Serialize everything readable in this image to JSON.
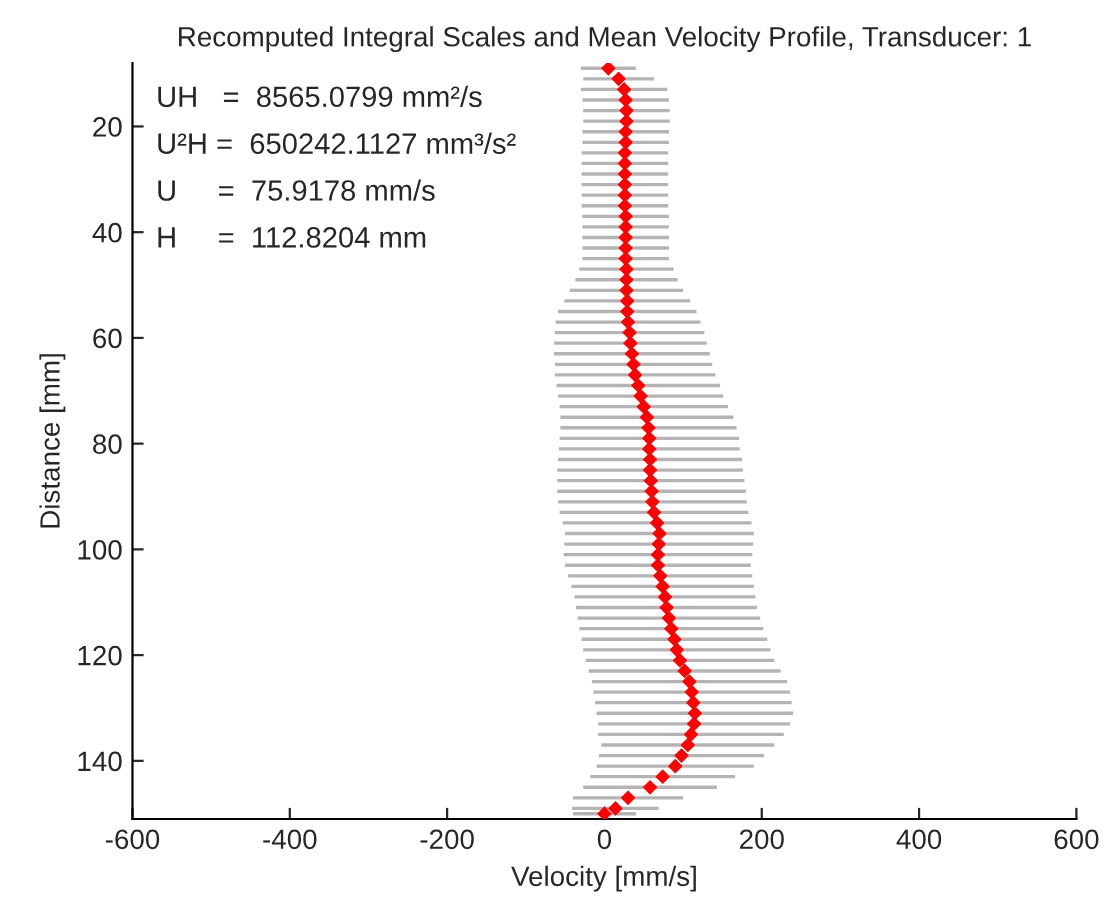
{
  "chart_data": {
    "type": "scatter",
    "title": "Recomputed Integral Scales and Mean Velocity Profile, Transducer: 1",
    "xlabel": "Velocity [mm/s]",
    "ylabel": "Distance [mm]",
    "annotations": [
      "UH   =  8565.0799 mm²/s",
      "U²H =  650242.1127 mm³/s²",
      "U     =  75.9178 mm/s",
      "H     =  112.8204 mm"
    ],
    "xlim": [
      -600,
      600
    ],
    "xticks": [
      -600,
      -400,
      -200,
      0,
      200,
      400,
      600
    ],
    "ylim": [
      151,
      8
    ],
    "yticks": [
      20,
      40,
      60,
      80,
      100,
      120,
      140
    ],
    "grid": false,
    "legend": false,
    "marker": "diamond",
    "series": [
      {
        "color": "#ff0000",
        "x": [
          5,
          18,
          25,
          27,
          28,
          28,
          27,
          27,
          26,
          26,
          26,
          26,
          26,
          26,
          27,
          27,
          27,
          27,
          27,
          28,
          28,
          28,
          29,
          29,
          30,
          32,
          33,
          35,
          37,
          39,
          43,
          46,
          50,
          54,
          56,
          57,
          57,
          58,
          58,
          59,
          60,
          61,
          63,
          67,
          70,
          69,
          68,
          68,
          71,
          74,
          77,
          79,
          82,
          85,
          89,
          92,
          96,
          102,
          108,
          111,
          113,
          115,
          114,
          110,
          106,
          98,
          90,
          74,
          58,
          30,
          14,
          0
        ],
        "values": [
          9,
          11,
          13,
          15,
          17,
          19,
          21,
          23,
          25,
          27,
          29,
          31,
          33,
          35,
          37,
          39,
          41,
          43,
          45,
          47,
          49,
          51,
          53,
          55,
          57,
          59,
          61,
          63,
          65,
          67,
          69,
          71,
          73,
          75,
          77,
          79,
          81,
          83,
          85,
          87,
          89,
          91,
          93,
          95,
          97,
          99,
          101,
          103,
          105,
          107,
          109,
          111,
          113,
          115,
          117,
          119,
          121,
          123,
          125,
          127,
          129,
          131,
          133,
          135,
          137,
          139,
          141,
          143,
          145,
          147,
          149,
          150
        ],
        "xerrors": [
          35,
          45,
          55,
          55,
          55,
          55,
          55,
          55,
          55,
          55,
          55,
          55,
          55,
          55,
          55,
          55,
          55,
          55,
          55,
          60,
          65,
          72,
          80,
          88,
          92,
          95,
          97,
          99,
          100,
          102,
          104,
          105,
          107,
          110,
          112,
          114,
          115,
          117,
          118,
          119,
          120,
          120,
          120,
          120,
          120,
          120,
          120,
          118,
          117,
          116,
          115,
          115,
          116,
          117,
          118,
          119,
          120,
          122,
          124,
          125,
          125,
          125,
          122,
          118,
          110,
          105,
          100,
          92,
          85,
          70,
          55,
          40
        ]
      }
    ]
  }
}
